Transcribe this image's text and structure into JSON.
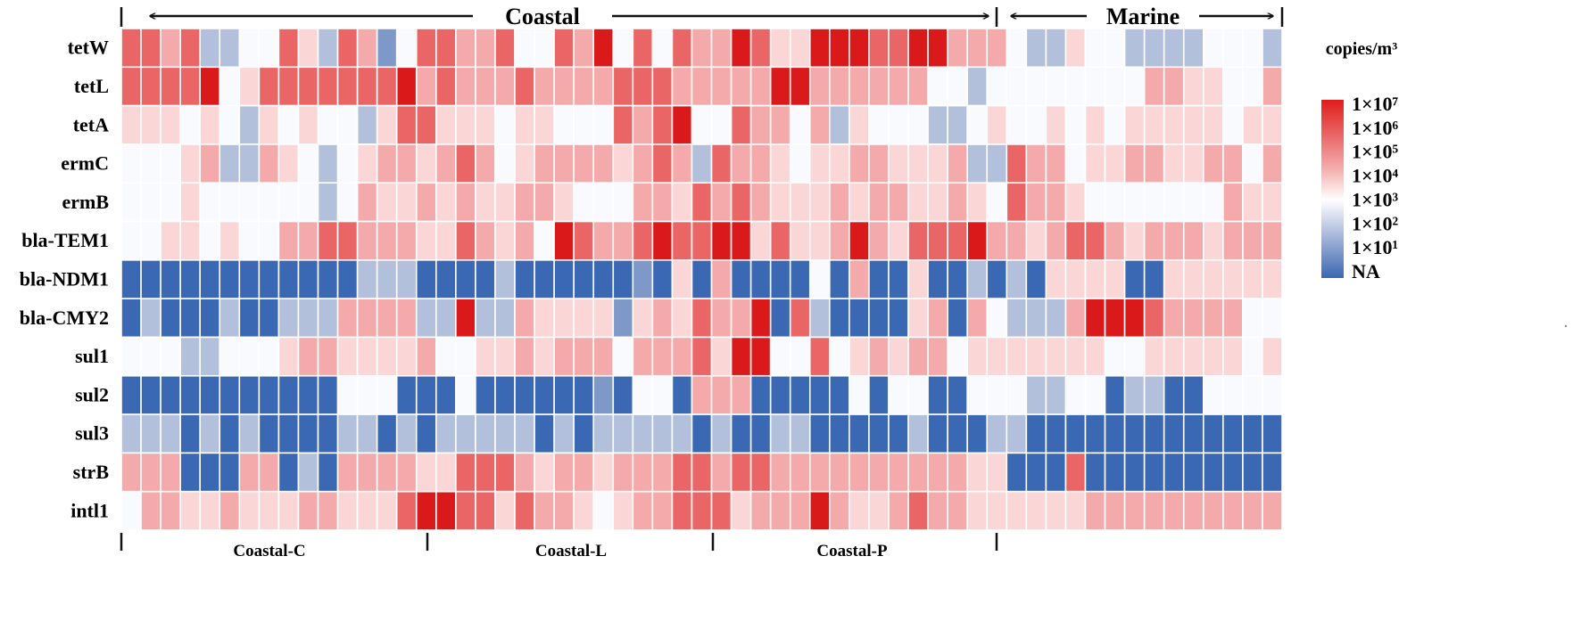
{
  "chart_data": {
    "type": "heatmap",
    "title": "",
    "rows": [
      "tetW",
      "tetL",
      "tetA",
      "ermC",
      "ermB",
      "bla-TEM1",
      "bla-NDM1",
      "bla-CMY2",
      "sul1",
      "sul2",
      "sul3",
      "strB",
      "intl1"
    ],
    "groups_top": [
      {
        "name": "Coastal",
        "start": 0,
        "end": 43
      },
      {
        "name": "Marine",
        "start": 44,
        "end": 57
      }
    ],
    "groups_bottom": [
      {
        "name": "Coastal-C",
        "start": 0,
        "end": 15
      },
      {
        "name": "Coastal-L",
        "start": 16,
        "end": 28
      },
      {
        "name": "Coastal-P",
        "start": 29,
        "end": 43
      }
    ],
    "value_scale": "log10 copies/m3; 0 = NA (not detected)",
    "values": [
      "66562233642651366556336573636558644787667755532243322223332",
      "66667346666666756555655556665555597555555332333333335544335",
      "44434324343324664443443336568336553524333223433434344444344",
      "33345225432345545653455554565265543445544452265534455445535",
      "33343333332354454544554333554656544454554454365543333333544",
      "33443433556655544654537655676677464457546667554566545554555",
      "00000000000022200002000000104050000305004002020444400444444",
      "02000200222555522722544441454655806200004505322257776555533",
      "33322333455444453344545553555647733634545534444444334444434",
      "00000000000333000300000010330555000003033003332233022003333",
      "22202020000220202222202022222020022000002000220000000000000",
      "55500055020555544666545545556656655555555554400060000000000",
      "35544544455444677664655434556664555754456554444445555555555"
    ],
    "legend": {
      "title": "copies/m³",
      "ticks": [
        "1×10⁷",
        "1×10⁶",
        "1×10⁵",
        "1×10⁴",
        "1×10³",
        "1×10²",
        "1×10¹",
        "NA"
      ]
    }
  },
  "colors": {
    "deep_blue": "#3a68b2",
    "light_blue": "#aebbd8",
    "white": "#ffffff",
    "light_red": "#f2b8b8",
    "deep_red": "#e01c1c",
    "line": "#111111"
  }
}
